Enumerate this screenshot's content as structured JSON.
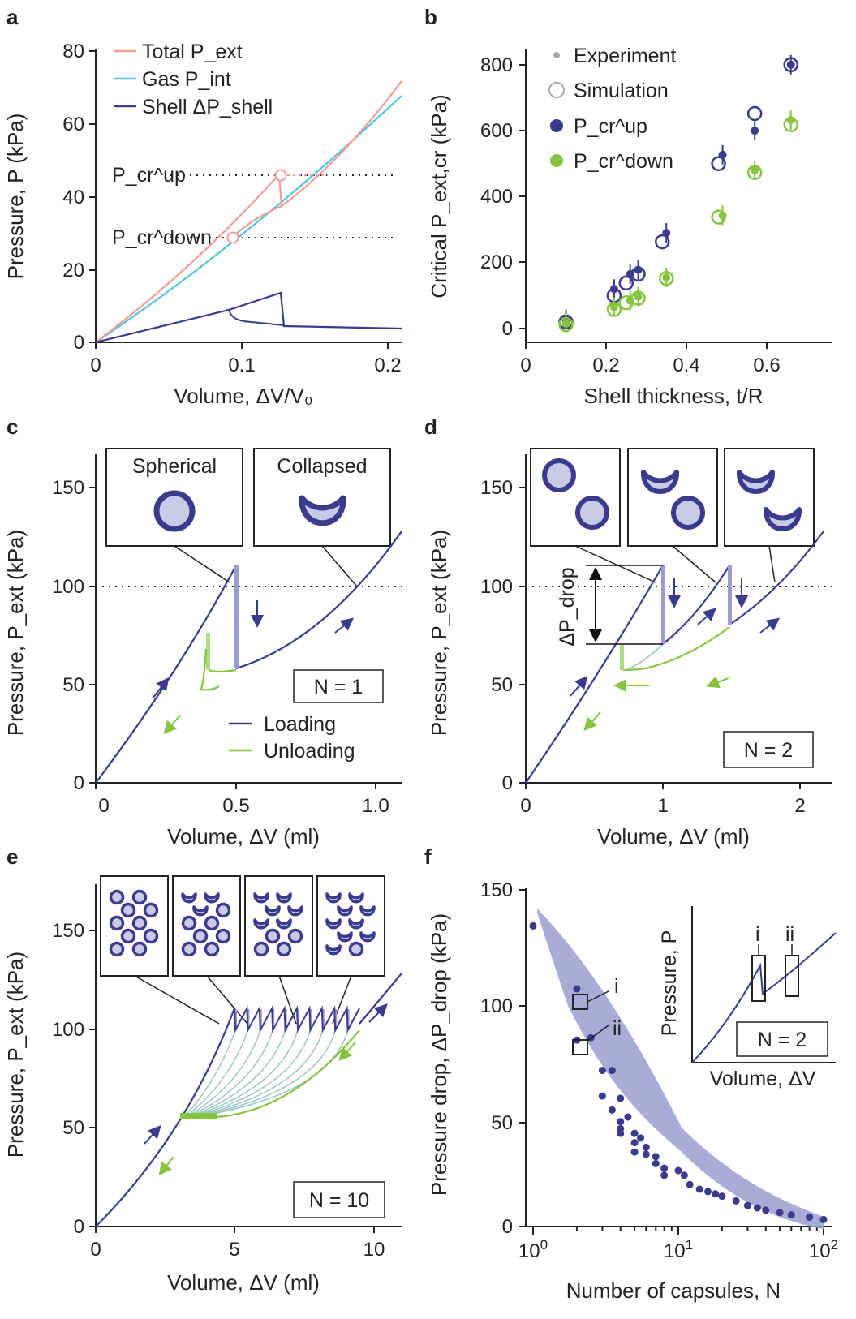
{
  "colors": {
    "navy": "#3b3a8c",
    "green": "#86c440",
    "pink": "#f29b9b",
    "cyan": "#52c6d8",
    "lavender": "#c9cbe6",
    "lavender_fill": "#9b9dd0",
    "teal_thin": "#9cc7c4",
    "text": "#222222"
  },
  "chart_data": [
    {
      "panel": "a",
      "type": "line",
      "xlabel": "Volume, ΔV/V₀",
      "ylabel": "Pressure, P (kPa)",
      "xlim": [
        0,
        0.2
      ],
      "ylim": [
        0,
        80
      ],
      "xticks": [
        "0",
        "0.1",
        "0.2"
      ],
      "yticks": [
        "0",
        "20",
        "40",
        "60",
        "80"
      ],
      "legend": [
        "Total P_ext",
        "Gas P_int",
        "Shell ΔP_shell"
      ],
      "series": [
        {
          "name": "Total P_ext",
          "x": [
            0,
            0.05,
            0.1,
            0.124,
            0.15,
            0.2
          ],
          "y": [
            0,
            19,
            38,
            46,
            53,
            72
          ]
        },
        {
          "name": "Gas P_int",
          "x": [
            0,
            0.05,
            0.1,
            0.15,
            0.2
          ],
          "y": [
            0,
            14,
            30,
            47,
            67
          ]
        },
        {
          "name": "Shell ΔP_shell",
          "x": [
            0,
            0.05,
            0.09,
            0.124,
            0.127,
            0.2
          ],
          "y": [
            0,
            5,
            8.5,
            13.5,
            4.5,
            4
          ]
        }
      ],
      "annotations": [
        {
          "label": "P_cr^up",
          "y": 46
        },
        {
          "label": "P_cr^down",
          "y": 29
        }
      ]
    },
    {
      "panel": "b",
      "type": "scatter",
      "xlabel": "Shell thickness, t/R",
      "ylabel": "Critical P_ext,cr (kPa)",
      "xlim": [
        0,
        0.72
      ],
      "ylim": [
        0,
        850
      ],
      "xticks": [
        "0",
        "0.2",
        "0.4",
        "0.6"
      ],
      "yticks": [
        "0",
        "200",
        "400",
        "600",
        "800"
      ],
      "legend": [
        "Experiment",
        "Simulation",
        "P_cr^up",
        "P_cr^down"
      ],
      "series": [
        {
          "name": "P_cr^up experiment",
          "x": [
            0.1,
            0.22,
            0.26,
            0.28,
            0.35,
            0.49,
            0.57,
            0.66
          ],
          "y": [
            28,
            120,
            165,
            178,
            290,
            527,
            600,
            800
          ]
        },
        {
          "name": "P_cr^up simulation",
          "x": [
            0.1,
            0.22,
            0.25,
            0.28,
            0.34,
            0.48,
            0.57,
            0.66
          ],
          "y": [
            20,
            100,
            138,
            165,
            263,
            500,
            652,
            800
          ]
        },
        {
          "name": "P_cr^down experiment",
          "x": [
            0.1,
            0.22,
            0.26,
            0.28,
            0.35,
            0.49,
            0.57,
            0.66
          ],
          "y": [
            15,
            65,
            85,
            97,
            155,
            343,
            480,
            632
          ]
        },
        {
          "name": "P_cr^down simulation",
          "x": [
            0.1,
            0.22,
            0.25,
            0.28,
            0.35,
            0.48,
            0.57,
            0.66
          ],
          "y": [
            12,
            58,
            78,
            92,
            152,
            338,
            473,
            618
          ]
        }
      ]
    },
    {
      "panel": "c",
      "type": "line",
      "xlabel": "Volume, ΔV (ml)",
      "ylabel": "Pressure, P_ext (kPa)",
      "xlim": [
        0,
        1.1
      ],
      "ylim": [
        0,
        170
      ],
      "xticks": [
        "0",
        "0.5",
        "1.0"
      ],
      "yticks": [
        "0",
        "50",
        "100",
        "150"
      ],
      "insets": [
        "Spherical",
        "Collapsed"
      ],
      "legend": [
        "Loading",
        "Unloading"
      ],
      "annotation": "N = 1",
      "series": [
        {
          "name": "Loading",
          "x": [
            0,
            0.25,
            0.5,
            0.5,
            0.8,
            1.1
          ],
          "y": [
            0,
            50,
            110,
            60,
            88,
            128
          ]
        },
        {
          "name": "Unloading",
          "x": [
            1.0,
            0.5,
            0.38,
            0.38,
            0.35
          ],
          "y": [
            110,
            58,
            55,
            77,
            48
          ]
        }
      ]
    },
    {
      "panel": "d",
      "type": "line",
      "xlabel": "Volume, ΔV (ml)",
      "ylabel": "Pressure, P_ext (kPa)",
      "xlim": [
        0,
        2.2
      ],
      "ylim": [
        0,
        170
      ],
      "xticks": [
        "0",
        "1",
        "2"
      ],
      "yticks": [
        "0",
        "50",
        "100",
        "150"
      ],
      "drop_label": "ΔP_drop",
      "annotation": "N = 2",
      "series": [
        {
          "name": "Loading",
          "x": [
            0,
            0.5,
            1.0,
            1.0,
            1.5,
            1.5,
            2.2
          ],
          "y": [
            0,
            52,
            110,
            70,
            110,
            80,
            128
          ]
        },
        {
          "name": "Unloading",
          "x": [
            2.0,
            1.5,
            1.0,
            0.7,
            0.7
          ],
          "y": [
            120,
            80,
            60,
            56,
            70
          ]
        }
      ]
    },
    {
      "panel": "e",
      "type": "line",
      "xlabel": "Volume, ΔV (ml)",
      "ylabel": "Pressure, P_ext (kPa)",
      "xlim": [
        0,
        11
      ],
      "ylim": [
        0,
        170
      ],
      "xticks": [
        "0",
        "5",
        "10"
      ],
      "yticks": [
        "0",
        "50",
        "100",
        "150"
      ],
      "annotation": "N = 10",
      "series": [
        {
          "name": "Loading",
          "x": [
            0,
            3,
            5,
            9.5,
            11
          ],
          "y": [
            0,
            56,
            110,
            110,
            128
          ]
        },
        {
          "name": "Unloading",
          "x": [
            9.5,
            6,
            4.2,
            3.2
          ],
          "y": [
            100,
            70,
            57,
            56
          ]
        }
      ]
    },
    {
      "panel": "f",
      "type": "scatter",
      "xlabel": "Number of capsules, N",
      "ylabel": "Pressure drop, ΔP_drop (kPa)",
      "xscale": "log",
      "xlim": [
        0.85,
        120
      ],
      "ylim": [
        0,
        150
      ],
      "xticks": [
        "10",
        "10",
        "10"
      ],
      "xtick_exponents": [
        "0",
        "1",
        "2"
      ],
      "yticks": [
        "0",
        "50",
        "100",
        "150"
      ],
      "markers": [
        "i",
        "ii"
      ],
      "inset": {
        "ylabel": "Pressure, P",
        "xlabel": "Volume, ΔV",
        "annotation": "N = 2",
        "markers": [
          "i",
          "ii"
        ]
      },
      "series": [
        {
          "name": "ΔP_drop",
          "x": [
            1,
            2,
            2,
            2.5,
            3,
            3,
            3.5,
            3.5,
            4,
            4,
            4,
            4,
            4.5,
            5,
            5,
            5,
            5.5,
            6,
            6,
            7,
            7,
            8,
            8,
            10,
            11,
            12,
            14,
            16,
            18,
            20,
            25,
            30,
            35,
            40,
            50,
            60,
            80,
            100
          ],
          "y": [
            129,
            102,
            80,
            81,
            67,
            56,
            67,
            50,
            55,
            45,
            42,
            40,
            47,
            40,
            36,
            32,
            38,
            34,
            31,
            30,
            27,
            25,
            22,
            24,
            22,
            18,
            16,
            15,
            14,
            13,
            11,
            9,
            8,
            7,
            6,
            5,
            4,
            3
          ]
        }
      ]
    }
  ]
}
